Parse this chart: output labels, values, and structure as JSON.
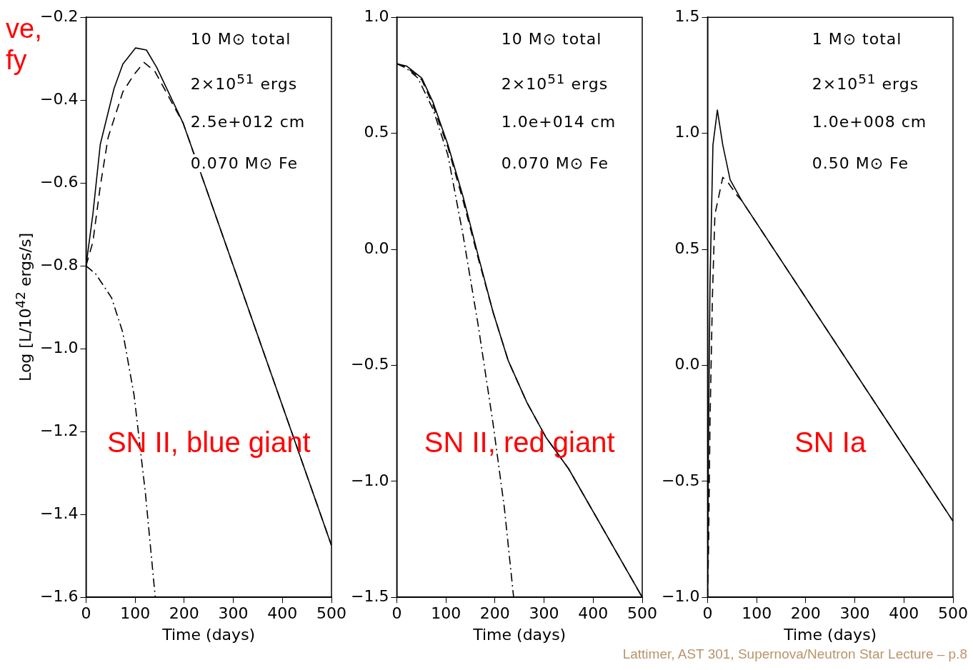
{
  "chart_data": [
    {
      "type": "line",
      "title": "SN II, blue giant",
      "subtitle": "ve,\nfy",
      "xlabel": "Time (days)",
      "ylabel": "Log [L/10$^{42}$ ergs/s]",
      "annotations": [
        "10 M⊙ total",
        "2×10$^{51}$ ergs",
        "2.5e+012 cm",
        "0.070 M⊙ Fe"
      ],
      "xlim": [
        0,
        500
      ],
      "xticks": [
        0,
        100,
        200,
        300,
        400,
        500
      ],
      "ylim": [
        -1.6,
        -0.2
      ],
      "yticks": [
        {
          "value": -1.6,
          "label": "−1.6"
        },
        {
          "value": -1.4,
          "label": "−1.4"
        },
        {
          "value": -1.2,
          "label": "−1.2"
        },
        {
          "value": -1.0,
          "label": "−1.0"
        },
        {
          "value": -0.8,
          "label": "−0.8"
        },
        {
          "value": -0.6,
          "label": "−0.6"
        },
        {
          "value": -0.4,
          "label": "−0.4"
        },
        {
          "value": -0.2,
          "label": "−0.2"
        }
      ],
      "grid": false,
      "legend": false,
      "series": [
        {
          "color": "#000000",
          "line_style": "solid",
          "x": [
            0,
            14,
            29,
            57,
            75,
            101,
            123,
            144,
            198,
            244,
            500
          ],
          "values": [
            -0.8,
            -0.675,
            -0.507,
            -0.372,
            -0.313,
            -0.274,
            -0.279,
            -0.321,
            -0.456,
            -0.611,
            -1.475
          ]
        },
        {
          "color": "#000000",
          "line_style": "dashed",
          "x": [
            0,
            14,
            29,
            45,
            75,
            98,
            118,
            140,
            198,
            244,
            500
          ],
          "values": [
            -0.8,
            -0.742,
            -0.608,
            -0.49,
            -0.38,
            -0.338,
            -0.309,
            -0.33,
            -0.456,
            -0.611,
            -1.475
          ]
        },
        {
          "color": "#000000",
          "line_style": "dotted",
          "x": [
            0,
            20,
            52,
            75,
            98,
            121,
            141
          ],
          "values": [
            -0.8,
            -0.82,
            -0.877,
            -0.961,
            -1.113,
            -1.349,
            -1.6
          ]
        }
      ]
    },
    {
      "type": "line",
      "title": "SN II, red giant",
      "xlabel": "Time (days)",
      "annotations": [
        "10 M⊙ total",
        "2×10$^{51}$ ergs",
        "1.0e+014 cm",
        "0.070 M⊙ Fe"
      ],
      "xlim": [
        0,
        500
      ],
      "xticks": [
        0,
        100,
        200,
        300,
        400,
        500
      ],
      "ylim": [
        -1.5,
        1.0
      ],
      "yticks": [
        {
          "value": -1.5,
          "label": "−1.5"
        },
        {
          "value": -1.0,
          "label": "−1.0"
        },
        {
          "value": -0.5,
          "label": "−0.5"
        },
        {
          "value": 0,
          "label": "0.0"
        },
        {
          "value": 0.5,
          "label": "0.5"
        },
        {
          "value": 1.0,
          "label": "1.0"
        }
      ],
      "grid": false,
      "legend": false,
      "series": [
        {
          "color": "#000000",
          "line_style": "solid",
          "x": [
            0,
            20,
            51,
            74,
            104,
            135,
            166,
            196,
            227,
            265,
            304,
            350,
            500
          ],
          "values": [
            0.8,
            0.79,
            0.738,
            0.633,
            0.452,
            0.227,
            -0.029,
            -0.27,
            -0.48,
            -0.66,
            -0.811,
            -0.946,
            -1.5
          ]
        },
        {
          "color": "#000000",
          "line_style": "dashed",
          "x": [
            0,
            20,
            51,
            74,
            104,
            135,
            166,
            196,
            227,
            265,
            304,
            350,
            500
          ],
          "values": [
            0.8,
            0.785,
            0.73,
            0.62,
            0.44,
            0.21,
            -0.04,
            -0.27,
            -0.48,
            -0.66,
            -0.811,
            -0.946,
            -1.5
          ]
        },
        {
          "color": "#000000",
          "line_style": "dotted",
          "x": [
            0,
            20,
            43,
            74,
            104,
            135,
            166,
            196,
            219,
            238
          ],
          "values": [
            0.8,
            0.78,
            0.738,
            0.603,
            0.407,
            0.061,
            -0.33,
            -0.75,
            -1.112,
            -1.5
          ]
        }
      ]
    },
    {
      "type": "line",
      "title": "SN Ia",
      "subtitle": "Lattimer, AST 301, Supernova/Neutron Star Lecture – p.8",
      "xlabel": "Time (days)",
      "annotations": [
        "1 M⊙ total",
        "2×10$^{51}$ ergs",
        "1.0e+008 cm",
        "0.50 M⊙ Fe"
      ],
      "xlim": [
        0,
        500
      ],
      "xticks": [
        0,
        100,
        200,
        300,
        400,
        500
      ],
      "ylim": [
        -1.0,
        1.5
      ],
      "yticks": [
        {
          "value": -1.0,
          "label": "−1.0"
        },
        {
          "value": -0.5,
          "label": "−0.5"
        },
        {
          "value": 0,
          "label": "0.0"
        },
        {
          "value": 0.5,
          "label": "0.5"
        },
        {
          "value": 1.0,
          "label": "1.0"
        },
        {
          "value": 1.5,
          "label": "1.5"
        }
      ],
      "grid": false,
      "legend": false,
      "series": [
        {
          "color": "#000000",
          "line_style": "solid",
          "x": [
            0,
            2,
            5,
            11,
            20,
            31,
            46,
            69,
            500
          ],
          "values": [
            -0.95,
            -0.3,
            0.35,
            0.95,
            1.1,
            0.95,
            0.8,
            0.712,
            -0.672
          ]
        },
        {
          "color": "#000000",
          "line_style": "dashed",
          "x": [
            0,
            2,
            5,
            10,
            15,
            31,
            41,
            61,
            69,
            500
          ],
          "values": [
            -1.0,
            -0.8,
            -0.25,
            0.3,
            0.65,
            0.81,
            0.79,
            0.73,
            0.712,
            -0.672
          ]
        }
      ]
    }
  ]
}
